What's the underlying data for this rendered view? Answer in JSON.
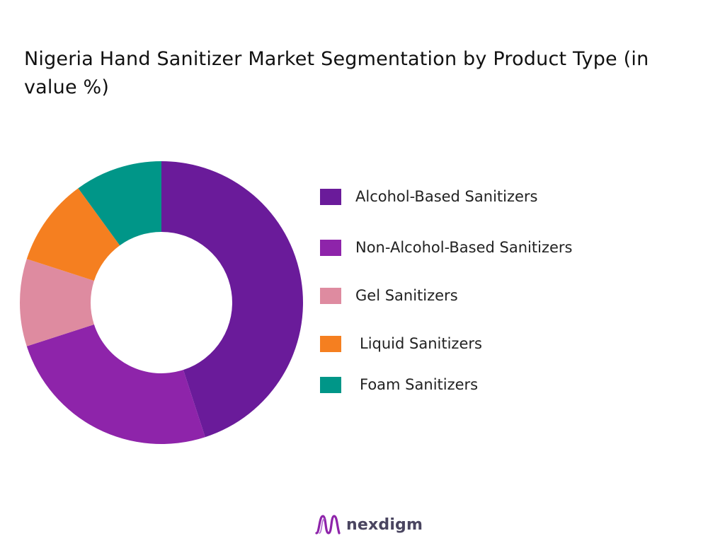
{
  "header": {
    "title": "Nigeria Hand Sanitizer Market Segmentation by Product Type (in value %)"
  },
  "chart_data": {
    "type": "pie",
    "variant": "donut",
    "title": "Nigeria Hand Sanitizer Market Segmentation by Product Type (in value %)",
    "unit": "%",
    "categories": [
      "Alcohol-Based Sanitizers",
      "Non-Alcohol-Based Sanitizers",
      "Gel Sanitizers",
      "Liquid Sanitizers",
      "Foam Sanitizers"
    ],
    "values": [
      45,
      25,
      10,
      10,
      10
    ],
    "colors": [
      "#6a1b9a",
      "#8e24aa",
      "#de8ba0",
      "#f57f20",
      "#009688"
    ],
    "start_angle": "12 o'clock",
    "direction": "clockwise",
    "legend_position": "right",
    "data_labels": false
  },
  "legend": {
    "items": [
      {
        "label": "Alcohol-Based Sanitizers",
        "color": "#6a1b9a"
      },
      {
        "label": "Non-Alcohol-Based Sanitizers",
        "color": "#8e24aa"
      },
      {
        "label": "Gel Sanitizers",
        "color": "#de8ba0"
      },
      {
        "label": "Liquid Sanitizers",
        "color": "#f57f20"
      },
      {
        "label": "Foam Sanitizers",
        "color": "#009688"
      }
    ]
  },
  "brand": {
    "name": "nexdigm",
    "logo_icon": "nexdigm-logo-icon",
    "colors": [
      "#8e24aa",
      "#4a4560"
    ]
  }
}
